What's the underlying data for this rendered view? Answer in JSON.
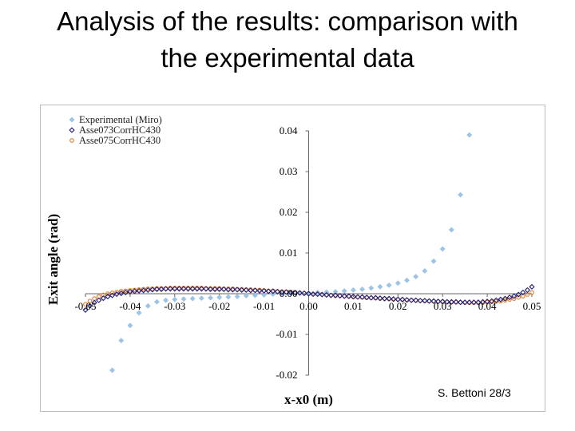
{
  "slide": {
    "title_line1": "Analysis of the results: comparison with",
    "title_line2": "the experimental data",
    "credit": "S. Bettoni 28/3"
  },
  "chart_data": {
    "type": "scatter",
    "title": "",
    "xlabel": "x-x0 (m)",
    "ylabel": "Exit angle (rad)",
    "xlim": [
      -0.05,
      0.05
    ],
    "ylim": [
      -0.02,
      0.04
    ],
    "x_ticks": [
      "-0.05",
      "-0.04",
      "-0.03",
      "-0.02",
      "-0.01",
      "0.00",
      "0.01",
      "0.02",
      "0.03",
      "0.04",
      "0.05"
    ],
    "y_ticks": [
      "-0.02",
      "-0.01",
      "0.00",
      "0.01",
      "0.02",
      "0.03",
      "0.04"
    ],
    "grid": false,
    "legend_position": "top-left",
    "series": [
      {
        "name": "Experimental (Miro)",
        "marker": "diamond-filled",
        "color": "#9dc3e6",
        "points": [
          [
            -0.044,
            -0.0188
          ],
          [
            -0.042,
            -0.0115
          ],
          [
            -0.04,
            -0.0078
          ],
          [
            -0.038,
            -0.0047
          ],
          [
            -0.036,
            -0.003
          ],
          [
            -0.034,
            -0.002
          ],
          [
            -0.032,
            -0.0016
          ],
          [
            -0.03,
            -0.0014
          ],
          [
            -0.028,
            -0.0013
          ],
          [
            -0.026,
            -0.0012
          ],
          [
            -0.024,
            -0.0011
          ],
          [
            -0.022,
            -0.001
          ],
          [
            -0.02,
            -0.0009
          ],
          [
            -0.018,
            -0.0008
          ],
          [
            -0.016,
            -0.0007
          ],
          [
            -0.014,
            -0.0005
          ],
          [
            -0.012,
            -0.0004
          ],
          [
            -0.01,
            -0.0003
          ],
          [
            -0.008,
            -0.0001
          ],
          [
            -0.006,
            0.0
          ],
          [
            -0.004,
            0.0
          ],
          [
            -0.002,
            0.0001
          ],
          [
            0.0,
            0.0002
          ],
          [
            0.002,
            0.0003
          ],
          [
            0.004,
            0.0004
          ],
          [
            0.006,
            0.0005
          ],
          [
            0.008,
            0.0007
          ],
          [
            0.01,
            0.0009
          ],
          [
            0.012,
            0.0011
          ],
          [
            0.014,
            0.0014
          ],
          [
            0.016,
            0.0017
          ],
          [
            0.018,
            0.0021
          ],
          [
            0.02,
            0.0026
          ],
          [
            0.022,
            0.0033
          ],
          [
            0.024,
            0.0042
          ],
          [
            0.026,
            0.0056
          ],
          [
            0.028,
            0.008
          ],
          [
            0.03,
            0.011
          ],
          [
            0.032,
            0.0157
          ],
          [
            0.034,
            0.0243
          ],
          [
            0.036,
            0.039
          ]
        ]
      },
      {
        "name": "Asse073CorrHC430",
        "marker": "diamond-open",
        "color": "#1f1f7a",
        "points": [
          [
            -0.05,
            -0.004
          ],
          [
            -0.049,
            -0.003
          ],
          [
            -0.048,
            -0.0022
          ],
          [
            -0.047,
            -0.0016
          ],
          [
            -0.046,
            -0.0011
          ],
          [
            -0.045,
            -0.0007
          ],
          [
            -0.044,
            -0.0004
          ],
          [
            -0.043,
            -0.0001
          ],
          [
            -0.042,
            0.0001
          ],
          [
            -0.041,
            0.0003
          ],
          [
            -0.04,
            0.0005
          ],
          [
            -0.039,
            0.0006
          ],
          [
            -0.038,
            0.0007
          ],
          [
            -0.037,
            0.0008
          ],
          [
            -0.036,
            0.0009
          ],
          [
            -0.035,
            0.001
          ],
          [
            -0.034,
            0.0011
          ],
          [
            -0.033,
            0.0011
          ],
          [
            -0.032,
            0.0012
          ],
          [
            -0.031,
            0.0012
          ],
          [
            -0.03,
            0.0012
          ],
          [
            -0.029,
            0.0012
          ],
          [
            -0.028,
            0.0012
          ],
          [
            -0.027,
            0.0012
          ],
          [
            -0.026,
            0.0012
          ],
          [
            -0.025,
            0.0012
          ],
          [
            -0.024,
            0.0012
          ],
          [
            -0.023,
            0.0012
          ],
          [
            -0.022,
            0.0011
          ],
          [
            -0.021,
            0.0011
          ],
          [
            -0.02,
            0.0011
          ],
          [
            -0.019,
            0.0011
          ],
          [
            -0.018,
            0.001
          ],
          [
            -0.017,
            0.001
          ],
          [
            -0.016,
            0.001
          ],
          [
            -0.015,
            0.0009
          ],
          [
            -0.014,
            0.0009
          ],
          [
            -0.013,
            0.0008
          ],
          [
            -0.012,
            0.0008
          ],
          [
            -0.011,
            0.0007
          ],
          [
            -0.01,
            0.0007
          ],
          [
            -0.009,
            0.0006
          ],
          [
            -0.008,
            0.0006
          ],
          [
            -0.007,
            0.0005
          ],
          [
            -0.006,
            0.0004
          ],
          [
            -0.005,
            0.0004
          ],
          [
            -0.004,
            0.0003
          ],
          [
            -0.003,
            0.0002
          ],
          [
            -0.002,
            0.0002
          ],
          [
            -0.001,
            0.0001
          ],
          [
            0.0,
            0.0
          ],
          [
            0.001,
            -0.0001
          ],
          [
            0.002,
            -0.0001
          ],
          [
            0.003,
            -0.0002
          ],
          [
            0.004,
            -0.0003
          ],
          [
            0.005,
            -0.0004
          ],
          [
            0.006,
            -0.0004
          ],
          [
            0.007,
            -0.0005
          ],
          [
            0.008,
            -0.0006
          ],
          [
            0.009,
            -0.0006
          ],
          [
            0.01,
            -0.0007
          ],
          [
            0.011,
            -0.0008
          ],
          [
            0.012,
            -0.0008
          ],
          [
            0.013,
            -0.0009
          ],
          [
            0.014,
            -0.001
          ],
          [
            0.015,
            -0.001
          ],
          [
            0.016,
            -0.0011
          ],
          [
            0.017,
            -0.0012
          ],
          [
            0.018,
            -0.0012
          ],
          [
            0.019,
            -0.0013
          ],
          [
            0.02,
            -0.0014
          ],
          [
            0.021,
            -0.0014
          ],
          [
            0.022,
            -0.0015
          ],
          [
            0.023,
            -0.0016
          ],
          [
            0.024,
            -0.0016
          ],
          [
            0.025,
            -0.0017
          ],
          [
            0.026,
            -0.0017
          ],
          [
            0.027,
            -0.0018
          ],
          [
            0.028,
            -0.0018
          ],
          [
            0.029,
            -0.0019
          ],
          [
            0.03,
            -0.0019
          ],
          [
            0.031,
            -0.002
          ],
          [
            0.032,
            -0.002
          ],
          [
            0.033,
            -0.002
          ],
          [
            0.034,
            -0.0021
          ],
          [
            0.035,
            -0.0021
          ],
          [
            0.036,
            -0.0021
          ],
          [
            0.037,
            -0.0021
          ],
          [
            0.038,
            -0.0021
          ],
          [
            0.039,
            -0.002
          ],
          [
            0.04,
            -0.0019
          ],
          [
            0.041,
            -0.0018
          ],
          [
            0.042,
            -0.0016
          ],
          [
            0.043,
            -0.0014
          ],
          [
            0.044,
            -0.0012
          ],
          [
            0.045,
            -0.0009
          ],
          [
            0.046,
            -0.0006
          ],
          [
            0.047,
            -0.0002
          ],
          [
            0.048,
            0.0003
          ],
          [
            0.049,
            0.0009
          ],
          [
            0.05,
            0.0017
          ]
        ]
      },
      {
        "name": "Asse075CorrHC430",
        "marker": "circle-open",
        "color": "#e07b28",
        "points": [
          [
            -0.05,
            -0.0026
          ],
          [
            -0.049,
            -0.0018
          ],
          [
            -0.048,
            -0.0012
          ],
          [
            -0.047,
            -0.0007
          ],
          [
            -0.046,
            -0.0003
          ],
          [
            -0.045,
            0.0
          ],
          [
            -0.044,
            0.0002
          ],
          [
            -0.043,
            0.0004
          ],
          [
            -0.042,
            0.0006
          ],
          [
            -0.041,
            0.0007
          ],
          [
            -0.04,
            0.0008
          ],
          [
            -0.039,
            0.0009
          ],
          [
            -0.038,
            0.001
          ],
          [
            -0.037,
            0.0011
          ],
          [
            -0.036,
            0.0012
          ],
          [
            -0.035,
            0.0012
          ],
          [
            -0.034,
            0.0013
          ],
          [
            -0.033,
            0.0013
          ],
          [
            -0.032,
            0.0013
          ],
          [
            -0.031,
            0.0014
          ],
          [
            -0.03,
            0.0014
          ],
          [
            -0.029,
            0.0014
          ],
          [
            -0.028,
            0.0014
          ],
          [
            -0.027,
            0.0014
          ],
          [
            -0.026,
            0.0014
          ],
          [
            -0.025,
            0.0014
          ],
          [
            -0.024,
            0.0014
          ],
          [
            -0.023,
            0.0013
          ],
          [
            -0.022,
            0.0013
          ],
          [
            -0.021,
            0.0013
          ],
          [
            -0.02,
            0.0013
          ],
          [
            -0.019,
            0.0012
          ],
          [
            -0.018,
            0.0012
          ],
          [
            -0.017,
            0.0012
          ],
          [
            -0.016,
            0.0011
          ],
          [
            -0.015,
            0.0011
          ],
          [
            -0.014,
            0.001
          ],
          [
            -0.013,
            0.001
          ],
          [
            -0.012,
            0.0009
          ],
          [
            -0.011,
            0.0009
          ],
          [
            -0.01,
            0.0008
          ],
          [
            -0.009,
            0.0007
          ],
          [
            -0.008,
            0.0007
          ],
          [
            -0.007,
            0.0006
          ],
          [
            -0.006,
            0.0005
          ],
          [
            -0.005,
            0.0005
          ],
          [
            -0.004,
            0.0004
          ],
          [
            -0.003,
            0.0003
          ],
          [
            -0.002,
            0.0002
          ],
          [
            -0.001,
            0.0001
          ],
          [
            0.0,
            0.0
          ],
          [
            0.001,
            -0.0001
          ],
          [
            0.002,
            -0.0001
          ],
          [
            0.003,
            -0.0002
          ],
          [
            0.004,
            -0.0003
          ],
          [
            0.005,
            -0.0004
          ],
          [
            0.006,
            -0.0005
          ],
          [
            0.007,
            -0.0005
          ],
          [
            0.008,
            -0.0006
          ],
          [
            0.009,
            -0.0007
          ],
          [
            0.01,
            -0.0008
          ],
          [
            0.011,
            -0.0008
          ],
          [
            0.012,
            -0.0009
          ],
          [
            0.013,
            -0.001
          ],
          [
            0.014,
            -0.001
          ],
          [
            0.015,
            -0.0011
          ],
          [
            0.016,
            -0.0012
          ],
          [
            0.017,
            -0.0012
          ],
          [
            0.018,
            -0.0013
          ],
          [
            0.019,
            -0.0014
          ],
          [
            0.02,
            -0.0014
          ],
          [
            0.021,
            -0.0015
          ],
          [
            0.022,
            -0.0016
          ],
          [
            0.023,
            -0.0016
          ],
          [
            0.024,
            -0.0017
          ],
          [
            0.025,
            -0.0017
          ],
          [
            0.026,
            -0.0018
          ],
          [
            0.027,
            -0.0018
          ],
          [
            0.028,
            -0.0019
          ],
          [
            0.029,
            -0.0019
          ],
          [
            0.03,
            -0.002
          ],
          [
            0.031,
            -0.002
          ],
          [
            0.032,
            -0.0021
          ],
          [
            0.033,
            -0.0021
          ],
          [
            0.034,
            -0.0021
          ],
          [
            0.035,
            -0.0022
          ],
          [
            0.036,
            -0.0022
          ],
          [
            0.037,
            -0.0022
          ],
          [
            0.038,
            -0.0022
          ],
          [
            0.039,
            -0.0022
          ],
          [
            0.04,
            -0.0021
          ],
          [
            0.041,
            -0.002
          ],
          [
            0.042,
            -0.0019
          ],
          [
            0.043,
            -0.0018
          ],
          [
            0.044,
            -0.0016
          ],
          [
            0.045,
            -0.0014
          ],
          [
            0.046,
            -0.0012
          ],
          [
            0.047,
            -0.0009
          ],
          [
            0.048,
            -0.0006
          ],
          [
            0.049,
            -0.0002
          ],
          [
            0.05,
            0.0003
          ]
        ]
      }
    ]
  }
}
